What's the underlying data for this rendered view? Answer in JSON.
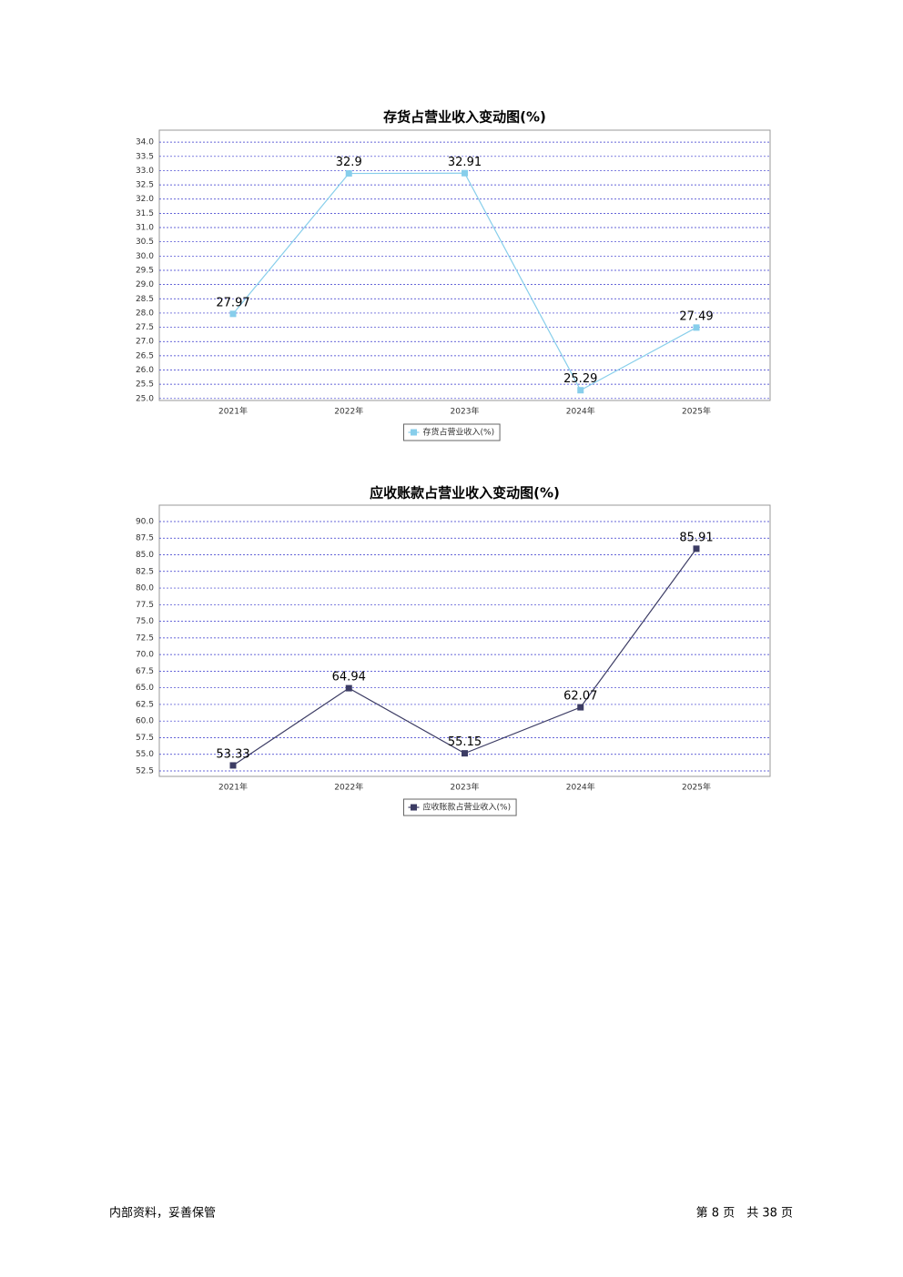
{
  "chart_data": [
    {
      "type": "line",
      "title": "存货占营业收入变动图(%)",
      "categories": [
        "2021年",
        "2022年",
        "2023年",
        "2024年",
        "2025年"
      ],
      "series": [
        {
          "name": "存货占营业收入(%)",
          "color": "#87ceeb",
          "values": [
            27.97,
            32.9,
            32.91,
            25.29,
            27.49
          ]
        }
      ],
      "ylim": [
        24.93,
        34.42
      ],
      "yticks": [
        {
          "value": 25,
          "label": "25.0"
        },
        25.5,
        {
          "value": 26,
          "label": "26.0"
        },
        26.5,
        {
          "value": 27,
          "label": "27.0"
        },
        27.5,
        {
          "value": 28,
          "label": "28.0"
        },
        28.5,
        {
          "value": 29,
          "label": "29.0"
        },
        29.5,
        {
          "value": 30,
          "label": "30.0"
        },
        30.5,
        {
          "value": 31,
          "label": "31.0"
        },
        31.5,
        {
          "value": 32,
          "label": "32.0"
        },
        32.5,
        {
          "value": 33,
          "label": "33.0"
        },
        33.5,
        {
          "value": 34,
          "label": "34.0"
        }
      ],
      "grid": true
    },
    {
      "type": "line",
      "title": "应收账款占营业收入变动图(%)",
      "categories": [
        "2021年",
        "2022年",
        "2023年",
        "2024年",
        "2025年"
      ],
      "series": [
        {
          "name": "应收账款占营业收入(%)",
          "color": "#3c3c64",
          "values": [
            53.33,
            64.94,
            55.15,
            62.07,
            85.91
          ]
        }
      ],
      "ylim": [
        51.68,
        92.46
      ],
      "yticks": [
        52.5,
        {
          "value": 55,
          "label": "55.0"
        },
        57.5,
        {
          "value": 60,
          "label": "60.0"
        },
        62.5,
        {
          "value": 65,
          "label": "65.0"
        },
        67.5,
        {
          "value": 70,
          "label": "70.0"
        },
        72.5,
        {
          "value": 75,
          "label": "75.0"
        },
        77.5,
        {
          "value": 80,
          "label": "80.0"
        },
        82.5,
        {
          "value": 85,
          "label": "85.0"
        },
        87.5,
        {
          "value": 90,
          "label": "90.0"
        }
      ],
      "grid": true
    }
  ],
  "footer": {
    "left": "内部资料，妥善保管",
    "right": "第 8 页　共 38 页"
  }
}
